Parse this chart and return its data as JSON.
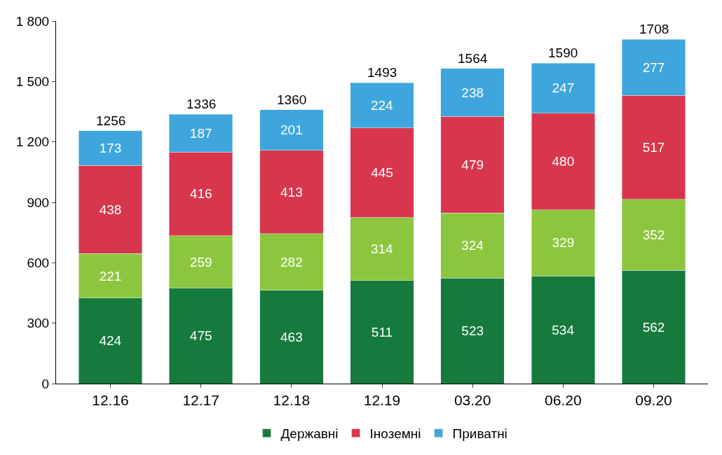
{
  "chart_data": {
    "type": "bar",
    "stacked": true,
    "categories": [
      "12.16",
      "12.17",
      "12.18",
      "12.19",
      "03.20",
      "06.20",
      "09.20"
    ],
    "series": [
      {
        "name": "Державні",
        "color": "#157a3c",
        "values": [
          424,
          475,
          463,
          511,
          523,
          534,
          562
        ]
      },
      {
        "color": "#8cc63f",
        "values": [
          221,
          259,
          282,
          314,
          324,
          329,
          352
        ]
      },
      {
        "name": "Іноземні",
        "color": "#d8364c",
        "values": [
          438,
          416,
          413,
          445,
          479,
          480,
          517
        ]
      },
      {
        "name": "Приватні",
        "color": "#3ea6dc",
        "values": [
          173,
          187,
          201,
          224,
          238,
          247,
          277
        ]
      }
    ],
    "totals": [
      "1256",
      "1336",
      "1360",
      "1493",
      "1564",
      "1590",
      "1708"
    ],
    "ylim": [
      0,
      1800
    ],
    "yticks": [
      0,
      300,
      600,
      900,
      {
        "value": 1200,
        "label": "1 200"
      },
      {
        "value": 1500,
        "label": "1 500"
      },
      {
        "value": 1800,
        "label": "1 800"
      }
    ],
    "data_labels": true,
    "legend": "bottom"
  }
}
